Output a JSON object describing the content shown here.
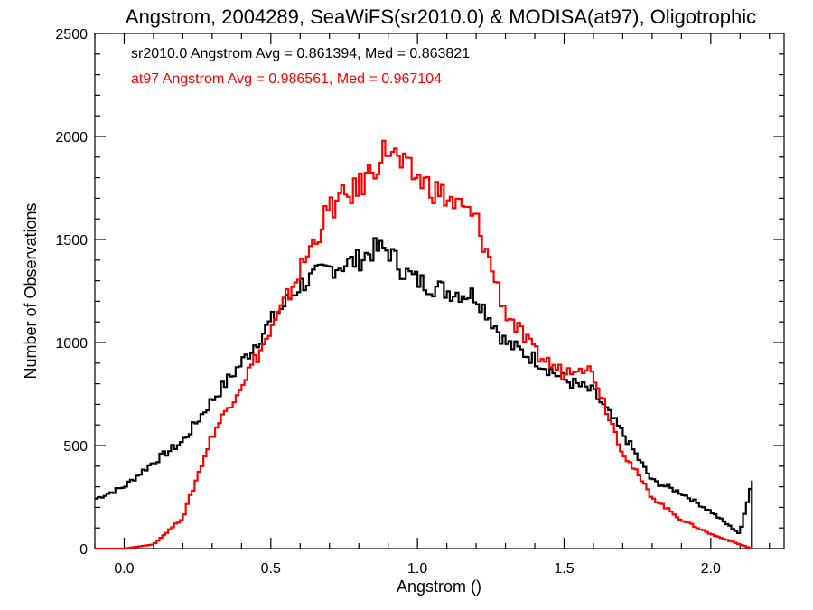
{
  "chart_data": {
    "type": "line",
    "title": "Angstrom, 2004289, SeaWiFS(sr2010.0) & MODISA(at97), Oligotrophic",
    "xlabel": "Angstrom ()",
    "ylabel": "Number of Observations",
    "xlim": [
      -0.1,
      2.25
    ],
    "ylim": [
      0,
      2500
    ],
    "x_ticks": [
      0.0,
      0.5,
      1.0,
      1.5,
      2.0
    ],
    "x_tick_labels": [
      "0.0",
      "0.5",
      "1.0",
      "1.5",
      "2.0"
    ],
    "y_ticks": [
      0,
      500,
      1000,
      1500,
      2000,
      2500
    ],
    "y_tick_labels": [
      "0",
      "500",
      "1000",
      "1500",
      "2000",
      "2500"
    ],
    "grid": false,
    "legend_placement": "top-left",
    "annotations": [
      "sr2010.0 Angstrom Avg = 0.861394, Med = 0.863821",
      "at97 Angstrom Avg = 0.986561, Med = 0.967104"
    ],
    "series": [
      {
        "name": "sr2010.0",
        "color": "#000000",
        "x": [
          -0.1,
          0.0,
          0.1,
          0.2,
          0.3,
          0.4,
          0.5,
          0.6,
          0.7,
          0.8,
          0.85,
          0.9,
          0.95,
          1.0,
          1.1,
          1.2,
          1.3,
          1.4,
          1.5,
          1.6,
          1.7,
          1.8,
          1.9,
          2.0,
          2.1,
          2.14
        ],
        "values": [
          240,
          300,
          420,
          520,
          720,
          900,
          1100,
          1280,
          1360,
          1400,
          1450,
          1450,
          1350,
          1300,
          1250,
          1230,
          1000,
          920,
          820,
          760,
          560,
          330,
          270,
          180,
          70,
          330
        ]
      },
      {
        "name": "at97",
        "color": "#ff0000",
        "x": [
          -0.1,
          0.0,
          0.1,
          0.2,
          0.3,
          0.4,
          0.5,
          0.6,
          0.7,
          0.8,
          0.85,
          0.9,
          0.95,
          1.0,
          1.1,
          1.2,
          1.3,
          1.4,
          1.5,
          1.55,
          1.6,
          1.7,
          1.8,
          1.9,
          2.0,
          2.1,
          2.14
        ],
        "values": [
          0,
          0,
          20,
          150,
          550,
          800,
          1050,
          1350,
          1650,
          1750,
          1850,
          1950,
          1850,
          1800,
          1700,
          1600,
          1150,
          950,
          850,
          900,
          850,
          470,
          250,
          140,
          70,
          20,
          0
        ]
      }
    ]
  }
}
